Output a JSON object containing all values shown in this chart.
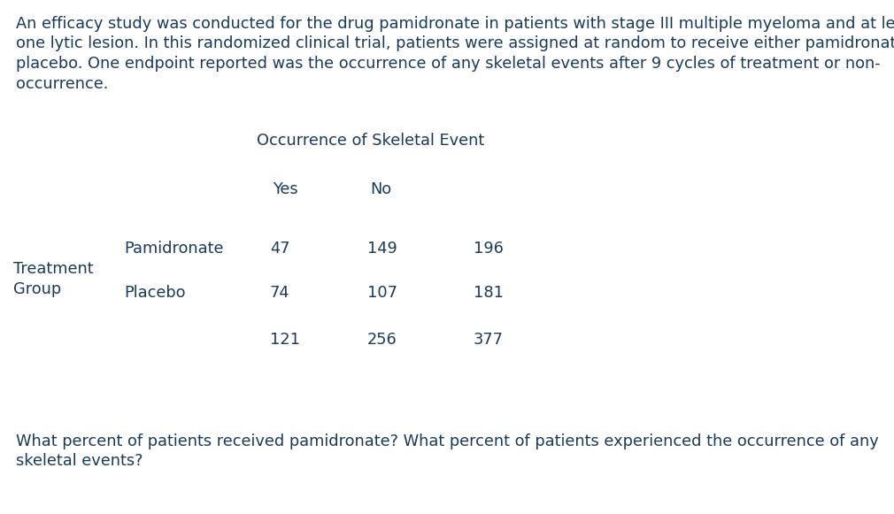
{
  "background_color": "#ffffff",
  "text_color": "#1a3a5c",
  "paragraph_lines": [
    "An efficacy study was conducted for the drug pamidronate in patients with stage III multiple myeloma and at least",
    "one lytic lesion. In this randomized clinical trial, patients were assigned at random to receive either pamidronate or",
    "placebo. One endpoint reported was the occurrence of any skeletal events after 9 cycles of treatment or non-",
    "occurrence."
  ],
  "table_header": "Occurrence of Skeletal Event",
  "col_headers": [
    "Yes",
    "No"
  ],
  "row_label_line1": "Treatment",
  "row_label_line2": "Group",
  "row_labels": [
    "Pamidronate",
    "Placebo"
  ],
  "data": [
    [
      47,
      149,
      196
    ],
    [
      74,
      107,
      181
    ]
  ],
  "totals": [
    121,
    256,
    377
  ],
  "question_lines": [
    "What percent of patients received pamidronate? What percent of patients experienced the occurrence of any",
    "skeletal events?"
  ],
  "font_size": 12.8
}
